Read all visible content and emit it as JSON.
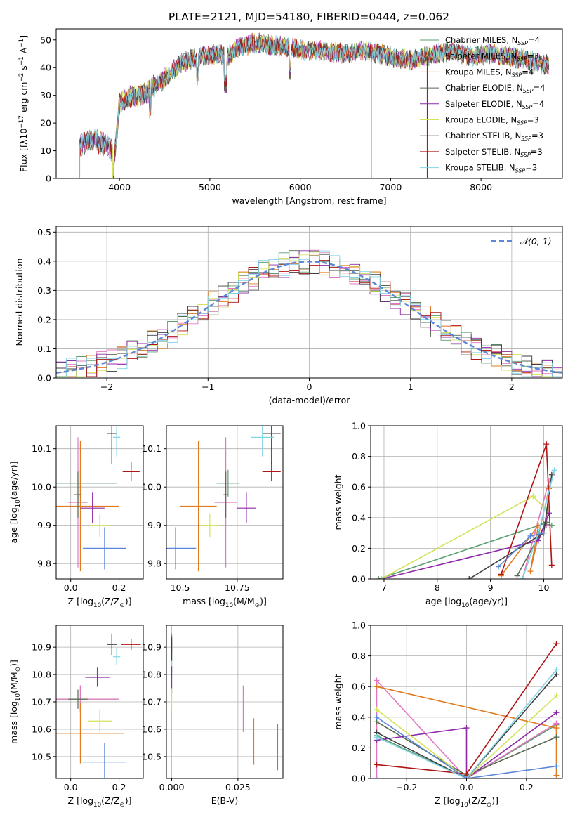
{
  "figure_title": "PLATE=2121, MJD=54180, FIBERID=0444, z=0.062",
  "series_colors": [
    "#5b9e6f",
    "#e377c2",
    "#e07b1f",
    "#5a6a52",
    "#8e2aa8",
    "#d4e35a",
    "#404040",
    "#b01515",
    "#7fd4e6"
  ],
  "extra_colors": {
    "blue": "#5b86d9",
    "gauss": "#5b86d9"
  },
  "chart_data": [
    {
      "type": "line",
      "id": "spectrum",
      "xlabel": "wavelength [Angstrom, rest frame]",
      "ylabel": "Flux [f_λ10^-17 erg cm^-2 s^-1 A^-1]",
      "xlim": [
        3300,
        8900
      ],
      "ylim": [
        0,
        54
      ],
      "xticks": [
        4000,
        5000,
        6000,
        7000,
        8000
      ],
      "yticks": [
        0,
        10,
        20,
        30,
        40,
        50
      ],
      "legend": "top-right",
      "series": [
        {
          "name": "Chabrier MILES, N_SSP=4"
        },
        {
          "name": "Salpeter MILES, N_SSP=3"
        },
        {
          "name": "Kroupa MILES, N_SSP=4"
        },
        {
          "name": "Chabrier ELODIE, N_SSP=4"
        },
        {
          "name": "Salpeter ELODIE, N_SSP=4"
        },
        {
          "name": "Kroupa ELODIE, N_SSP=3"
        },
        {
          "name": "Chabrier STELIB, N_SSP=3"
        },
        {
          "name": "Salpeter STELIB, N_SSP=3"
        },
        {
          "name": "Kroupa STELIB, N_SSP=3"
        }
      ],
      "continuum": {
        "x": [
          3550,
          3700,
          3850,
          3950,
          4000,
          4100,
          4300,
          4500,
          4700,
          4900,
          5100,
          5200,
          5300,
          5500,
          5700,
          5900,
          6100,
          6300,
          6500,
          6700,
          6900,
          7100,
          7300,
          7500,
          7700,
          7900,
          8100,
          8300,
          8500,
          8700
        ],
        "y": [
          12,
          14,
          12,
          10,
          27,
          29,
          31,
          36,
          42,
          44,
          45,
          44,
          47,
          49,
          48,
          47,
          46,
          46,
          45,
          46,
          45,
          43,
          43,
          45,
          46,
          44,
          45,
          44,
          43,
          41
        ]
      }
    },
    {
      "type": "step",
      "id": "residuals",
      "xlabel": "(data-model)/error",
      "ylabel": "Normed distribution",
      "xlim": [
        -2.5,
        2.5
      ],
      "ylim": [
        0,
        0.52
      ],
      "xticks": [
        -2,
        -1,
        0,
        1,
        2
      ],
      "yticks": [
        0.0,
        0.1,
        0.2,
        0.3,
        0.4,
        0.5
      ],
      "legend_label": "𝒩(0, 1)",
      "bin_width": 0.1
    },
    {
      "type": "errorbar",
      "id": "age-vs-Z",
      "xlabel": "Z [log10(Z/Z⊙)]",
      "ylabel": "age [log10(age/yr)]",
      "xlim": [
        -0.06,
        0.3
      ],
      "ylim": [
        9.76,
        10.16
      ],
      "xticks": [
        0.0,
        0.2
      ],
      "yticks": [
        9.8,
        9.9,
        10.0,
        10.1
      ],
      "points": [
        {
          "x": 0.04,
          "xerr": 0.15,
          "y": 10.01,
          "yerr": 0.035,
          "c": 0
        },
        {
          "x": 0.03,
          "xerr": 0.04,
          "y": 9.96,
          "yerr": 0.17,
          "c": 1
        },
        {
          "x": 0.04,
          "xerr": 0.16,
          "y": 9.95,
          "yerr": 0.17,
          "c": 2
        },
        {
          "x": 0.03,
          "xerr": 0.015,
          "y": 9.98,
          "yerr": 0.06,
          "c": 3
        },
        {
          "x": 0.09,
          "xerr": 0.05,
          "y": 9.945,
          "yerr": 0.04,
          "c": 4
        },
        {
          "x": 0.12,
          "xerr": 0.04,
          "y": 9.9,
          "yerr": 0.03,
          "c": 5
        },
        {
          "x": 0.17,
          "xerr": 0.02,
          "y": 10.14,
          "yerr": 0.08,
          "c": 6
        },
        {
          "x": 0.25,
          "xerr": 0.035,
          "y": 10.04,
          "yerr": 0.025,
          "c": 7
        },
        {
          "x": 0.19,
          "xerr": 0.015,
          "y": 10.13,
          "yerr": 0.05,
          "c": 8
        },
        {
          "x": 0.14,
          "xerr": 0.09,
          "y": 9.84,
          "yerr": 0.055,
          "c": "blue"
        }
      ]
    },
    {
      "type": "errorbar",
      "id": "age-vs-mass",
      "xlabel": "mass [log10(M/M⊙)]",
      "ylabel": "",
      "xlim": [
        10.44,
        10.95
      ],
      "ylim": [
        9.76,
        10.16
      ],
      "xticks": [
        10.5,
        10.75
      ],
      "yticks": [
        9.8,
        9.9,
        10.0,
        10.1
      ],
      "points": [
        {
          "x": 10.71,
          "xerr": 0.05,
          "y": 10.01,
          "yerr": 0.035,
          "c": 0
        },
        {
          "x": 10.7,
          "xerr": 0.05,
          "y": 9.96,
          "yerr": 0.17,
          "c": 1
        },
        {
          "x": 10.58,
          "xerr": 0.08,
          "y": 9.95,
          "yerr": 0.17,
          "c": 2
        },
        {
          "x": 10.7,
          "xerr": 0.01,
          "y": 9.98,
          "yerr": 0.06,
          "c": 3
        },
        {
          "x": 10.79,
          "xerr": 0.04,
          "y": 9.945,
          "yerr": 0.04,
          "c": 4
        },
        {
          "x": 10.63,
          "xerr": 0.04,
          "y": 9.9,
          "yerr": 0.03,
          "c": 5
        },
        {
          "x": 10.9,
          "xerr": 0.04,
          "y": 10.14,
          "yerr": 0.08,
          "c": 6
        },
        {
          "x": 10.9,
          "xerr": 0.04,
          "y": 10.04,
          "yerr": 0.025,
          "c": 7
        },
        {
          "x": 10.86,
          "xerr": 0.05,
          "y": 10.13,
          "yerr": 0.05,
          "c": 8
        },
        {
          "x": 10.48,
          "xerr": 0.09,
          "y": 9.84,
          "yerr": 0.055,
          "c": "blue"
        }
      ]
    },
    {
      "type": "line",
      "id": "weight-vs-age",
      "xlabel": "age [log10(age/yr)]",
      "ylabel": "mass weight",
      "xlim": [
        6.75,
        10.35
      ],
      "ylim": [
        0,
        1
      ],
      "xticks": [
        7,
        8,
        9,
        10
      ],
      "yticks": [
        0.0,
        0.2,
        0.4,
        0.6,
        0.8,
        1.0
      ],
      "series": [
        {
          "c": 0,
          "x": [
            6.9,
            10.0,
            10.15
          ],
          "y": [
            0.0,
            0.36,
            0.35
          ]
        },
        {
          "c": 1,
          "x": [
            9.6,
            10.1,
            10.05
          ],
          "y": [
            0.0,
            0.64,
            0.35
          ]
        },
        {
          "c": 2,
          "x": [
            9.2,
            9.9,
            9.75,
            10.1
          ],
          "y": [
            0.02,
            0.35,
            0.05,
            0.59
          ]
        },
        {
          "c": 3,
          "x": [
            9.5,
            10.05,
            9.9
          ],
          "y": [
            0.02,
            0.37,
            0.27
          ]
        },
        {
          "c": 4,
          "x": [
            6.95,
            9.9,
            10.1
          ],
          "y": [
            0.0,
            0.25,
            0.43
          ]
        },
        {
          "c": 5,
          "x": [
            6.95,
            9.8,
            10.05
          ],
          "y": [
            0.0,
            0.54,
            0.45
          ]
        },
        {
          "c": 6,
          "x": [
            8.6,
            10.0,
            10.15
          ],
          "y": [
            0.0,
            0.3,
            0.68
          ]
        },
        {
          "c": 7,
          "x": [
            9.2,
            10.05,
            10.15
          ],
          "y": [
            0.03,
            0.88,
            0.09
          ]
        },
        {
          "c": 8,
          "x": [
            9.6,
            9.9,
            10.2
          ],
          "y": [
            0.0,
            0.3,
            0.71
          ]
        },
        {
          "c": "blue",
          "x": [
            9.15,
            9.75,
            10.0
          ],
          "y": [
            0.08,
            0.28,
            0.3
          ]
        }
      ]
    },
    {
      "type": "errorbar",
      "id": "mass-vs-Z",
      "xlabel": "Z [log10(Z/Z⊙)]",
      "ylabel": "mass [log10(M/M⊙)]",
      "xlim": [
        -0.06,
        0.3
      ],
      "ylim": [
        10.42,
        10.98
      ],
      "xticks": [
        0.0,
        0.2
      ],
      "yticks": [
        10.5,
        10.6,
        10.7,
        10.8,
        10.9
      ],
      "points": [
        {
          "x": 0.04,
          "xerr": 0.15,
          "y": 10.71,
          "yerr": 0.05,
          "c": 0
        },
        {
          "x": 0.04,
          "xerr": 0.16,
          "y": 10.71,
          "yerr": 0.05,
          "c": 1
        },
        {
          "x": 0.04,
          "xerr": 0.18,
          "y": 10.585,
          "yerr": 0.11,
          "c": 2
        },
        {
          "x": 0.03,
          "xerr": 0.04,
          "y": 10.71,
          "yerr": 0.035,
          "c": 3
        },
        {
          "x": 0.11,
          "xerr": 0.05,
          "y": 10.79,
          "yerr": 0.035,
          "c": 4
        },
        {
          "x": 0.12,
          "xerr": 0.05,
          "y": 10.63,
          "yerr": 0.04,
          "c": 5
        },
        {
          "x": 0.17,
          "xerr": 0.02,
          "y": 10.91,
          "yerr": 0.04,
          "c": 6
        },
        {
          "x": 0.25,
          "xerr": 0.04,
          "y": 10.91,
          "yerr": 0.02,
          "c": 7
        },
        {
          "x": 0.19,
          "xerr": 0.015,
          "y": 10.865,
          "yerr": 0.03,
          "c": 8
        },
        {
          "x": 0.14,
          "xerr": 0.09,
          "y": 10.48,
          "yerr": 0.07,
          "c": "blue"
        }
      ]
    },
    {
      "type": "errorbar",
      "id": "mass-vs-ebv",
      "xlabel": "E(B-V)",
      "ylabel": "",
      "xlim": [
        -0.002,
        0.042
      ],
      "ylim": [
        10.42,
        10.98
      ],
      "xticks": [
        0.0,
        0.025
      ],
      "yticks": [
        10.5,
        10.6,
        10.7,
        10.8,
        10.9
      ],
      "points": [
        {
          "x": 0.0,
          "xerr": 0,
          "y": 10.88,
          "yerr": 0.07,
          "c": 0
        },
        {
          "x": 0.0,
          "xerr": 0,
          "y": 10.86,
          "yerr": 0.07,
          "c": 8
        },
        {
          "x": 0.0,
          "xerr": 0,
          "y": 10.78,
          "yerr": 0.05,
          "c": 4
        },
        {
          "x": 0.0,
          "xerr": 0,
          "y": 10.71,
          "yerr": 0.04,
          "c": 5
        },
        {
          "x": 0.0,
          "xerr": 0,
          "y": 10.91,
          "yerr": 0.03,
          "c": 7
        },
        {
          "x": 0.0,
          "xerr": 0,
          "y": 10.89,
          "yerr": 0.04,
          "c": 6
        },
        {
          "x": 0.027,
          "xerr": 0,
          "y": 10.675,
          "yerr": 0.085,
          "c": 1
        },
        {
          "x": 0.031,
          "xerr": 0,
          "y": 10.555,
          "yerr": 0.085,
          "c": 2
        },
        {
          "x": 0.04,
          "xerr": 0,
          "y": 10.535,
          "yerr": 0.085,
          "c": "blue"
        }
      ]
    },
    {
      "type": "line",
      "id": "weight-vs-Z",
      "xlabel": "Z [log10(Z/Z⊙)]",
      "ylabel": "mass weight",
      "xlim": [
        -0.32,
        0.32
      ],
      "ylim": [
        0,
        1
      ],
      "xticks": [
        -0.2,
        0.0,
        0.2
      ],
      "yticks": [
        0.0,
        0.2,
        0.4,
        0.6,
        0.8,
        1.0
      ],
      "series": [
        {
          "c": 0,
          "x": [
            -0.3,
            0.0,
            0.3
          ],
          "y": [
            0.28,
            0.0,
            0.35
          ]
        },
        {
          "c": 1,
          "x": [
            -0.3,
            -0.3,
            0.0,
            0.3
          ],
          "y": [
            0.0,
            0.64,
            0.0,
            0.36
          ]
        },
        {
          "c": 2,
          "x": [
            -0.3,
            0.3,
            0.3
          ],
          "y": [
            0.6,
            0.33,
            0.02
          ]
        },
        {
          "c": 3,
          "x": [
            -0.3,
            0.0,
            0.3
          ],
          "y": [
            0.37,
            0.02,
            0.27
          ]
        },
        {
          "c": 4,
          "x": [
            -0.3,
            0.0,
            0.0,
            0.3
          ],
          "y": [
            0.25,
            0.33,
            0.0,
            0.43
          ]
        },
        {
          "c": 5,
          "x": [
            -0.3,
            0.0,
            0.3
          ],
          "y": [
            0.45,
            0.0,
            0.54
          ]
        },
        {
          "c": 6,
          "x": [
            -0.3,
            0.0,
            0.3
          ],
          "y": [
            0.3,
            0.0,
            0.68
          ]
        },
        {
          "c": 7,
          "x": [
            -0.3,
            0.0,
            0.3
          ],
          "y": [
            0.09,
            0.03,
            0.88
          ]
        },
        {
          "c": 8,
          "x": [
            -0.3,
            0.0,
            0.3
          ],
          "y": [
            0.27,
            0.0,
            0.71
          ]
        },
        {
          "c": "blue",
          "x": [
            -0.3,
            0.0,
            0.3
          ],
          "y": [
            0.4,
            0.0,
            0.08
          ]
        }
      ]
    }
  ]
}
